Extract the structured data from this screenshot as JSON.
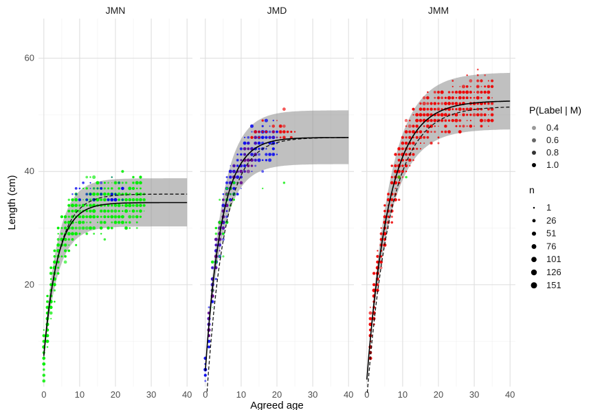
{
  "chart_data": {
    "type": "scatter",
    "panels": [
      {
        "name": "JMN",
        "curves": {
          "solid": {
            "linf": 34.5,
            "k": 0.26,
            "t0": -0.95
          },
          "dashed": {
            "linf": 36.0,
            "k": 0.24,
            "t0": -0.95
          },
          "band": {
            "upper_linf": 38.8,
            "lower_linf": 30.3
          }
        },
        "clusters": [
          {
            "color": "#00ee00",
            "amin": 0,
            "amax": 28,
            "spread": 3.8,
            "weight": 0.85,
            "maxlen": 41
          },
          {
            "color": "#0000ee",
            "amin": 2,
            "amax": 22,
            "spread": 4.5,
            "weight": 0.15,
            "minlen": 35,
            "maxlen": 50
          }
        ]
      },
      {
        "name": "JMD",
        "curves": {
          "solid": {
            "linf": 46.0,
            "k": 0.22,
            "t0": -0.5
          },
          "dashed": {
            "linf": 46.0,
            "k": 0.2,
            "t0": 0.35
          },
          "band": {
            "upper_linf": 50.8,
            "lower_linf": 41.3
          }
        },
        "clusters": [
          {
            "color": "#1010ee",
            "amin": 0,
            "amax": 20,
            "spread": 3.0,
            "weight": 0.55,
            "maxlen": 49
          },
          {
            "color": "#6a0f8e",
            "amin": 1,
            "amax": 14,
            "spread": 2.5,
            "weight": 0.15,
            "maxlen": 49
          },
          {
            "color": "#00ee00",
            "amin": 1,
            "amax": 26,
            "spread": 6.0,
            "weight": 0.12,
            "minlen": 15,
            "maxlen": 38
          },
          {
            "color": "#ee0000",
            "amin": 7,
            "amax": 25,
            "spread": 3.5,
            "weight": 0.18,
            "minlen": 46,
            "maxlen": 59
          }
        ]
      },
      {
        "name": "JMM",
        "curves": {
          "solid": {
            "linf": 52.5,
            "k": 0.16,
            "t0": -0.4
          },
          "dashed": {
            "linf": 51.5,
            "k": 0.15,
            "t0": 0.0
          },
          "band": {
            "upper_linf": 57.5,
            "lower_linf": 47.5
          }
        },
        "clusters": [
          {
            "color": "#ee0000",
            "amin": 1,
            "amax": 35,
            "spread": 3.6,
            "weight": 0.97,
            "maxlen": 63
          },
          {
            "color": "#00ee00",
            "amin": 8,
            "amax": 19,
            "spread": 6.0,
            "weight": 0.03,
            "minlen": 26,
            "maxlen": 40
          }
        ]
      }
    ],
    "x": {
      "label": "Agreed age",
      "range": [
        -1.5,
        41.5
      ],
      "ticks": [
        0,
        10,
        20,
        30,
        40
      ]
    },
    "y": {
      "label": "Length (cm)",
      "range": [
        2,
        67
      ],
      "ticks": [
        20,
        40,
        60
      ]
    },
    "grid": true,
    "legend": {
      "placement": "right",
      "alpha": {
        "title": "P(Label | M)",
        "items": [
          0.4,
          0.6,
          0.8,
          1.0
        ],
        "labels": [
          "0.4",
          "0.6",
          "0.8",
          "1.0"
        ]
      },
      "size": {
        "title": "n",
        "items": [
          1,
          26,
          51,
          76,
          101,
          126,
          151
        ],
        "labels": [
          "1",
          "26",
          "51",
          "76",
          "101",
          "126",
          "151"
        ]
      }
    }
  }
}
